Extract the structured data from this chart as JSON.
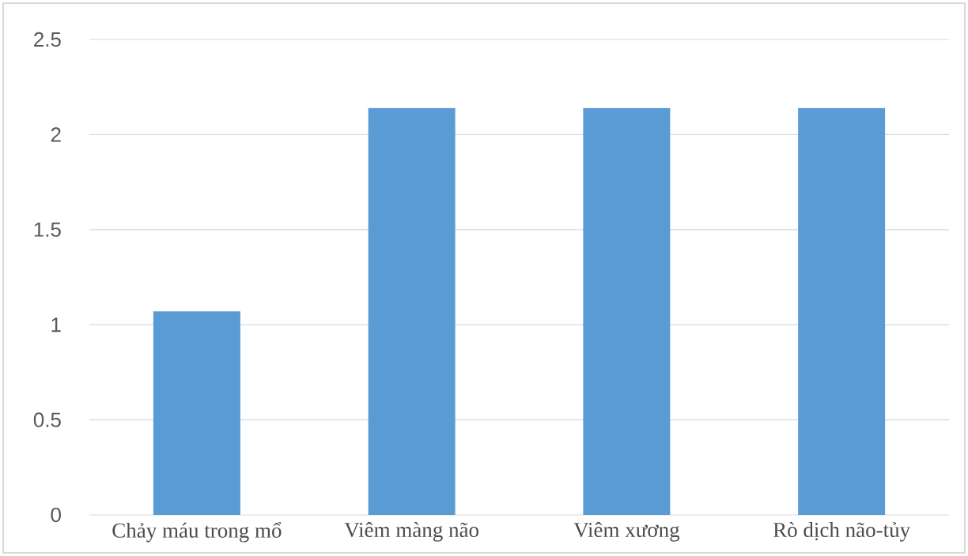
{
  "chart_data": {
    "type": "bar",
    "categories": [
      "Chảy máu trong mổ",
      "Viêm màng não",
      "Viêm xương",
      "Rò dịch não-tủy"
    ],
    "values": [
      1.07,
      2.14,
      2.14,
      2.14
    ],
    "color": "#5b9bd5",
    "ylim": [
      0,
      2.5
    ],
    "yticks": [
      0,
      0.5,
      1,
      1.5,
      2,
      2.5
    ],
    "grid": "y"
  }
}
